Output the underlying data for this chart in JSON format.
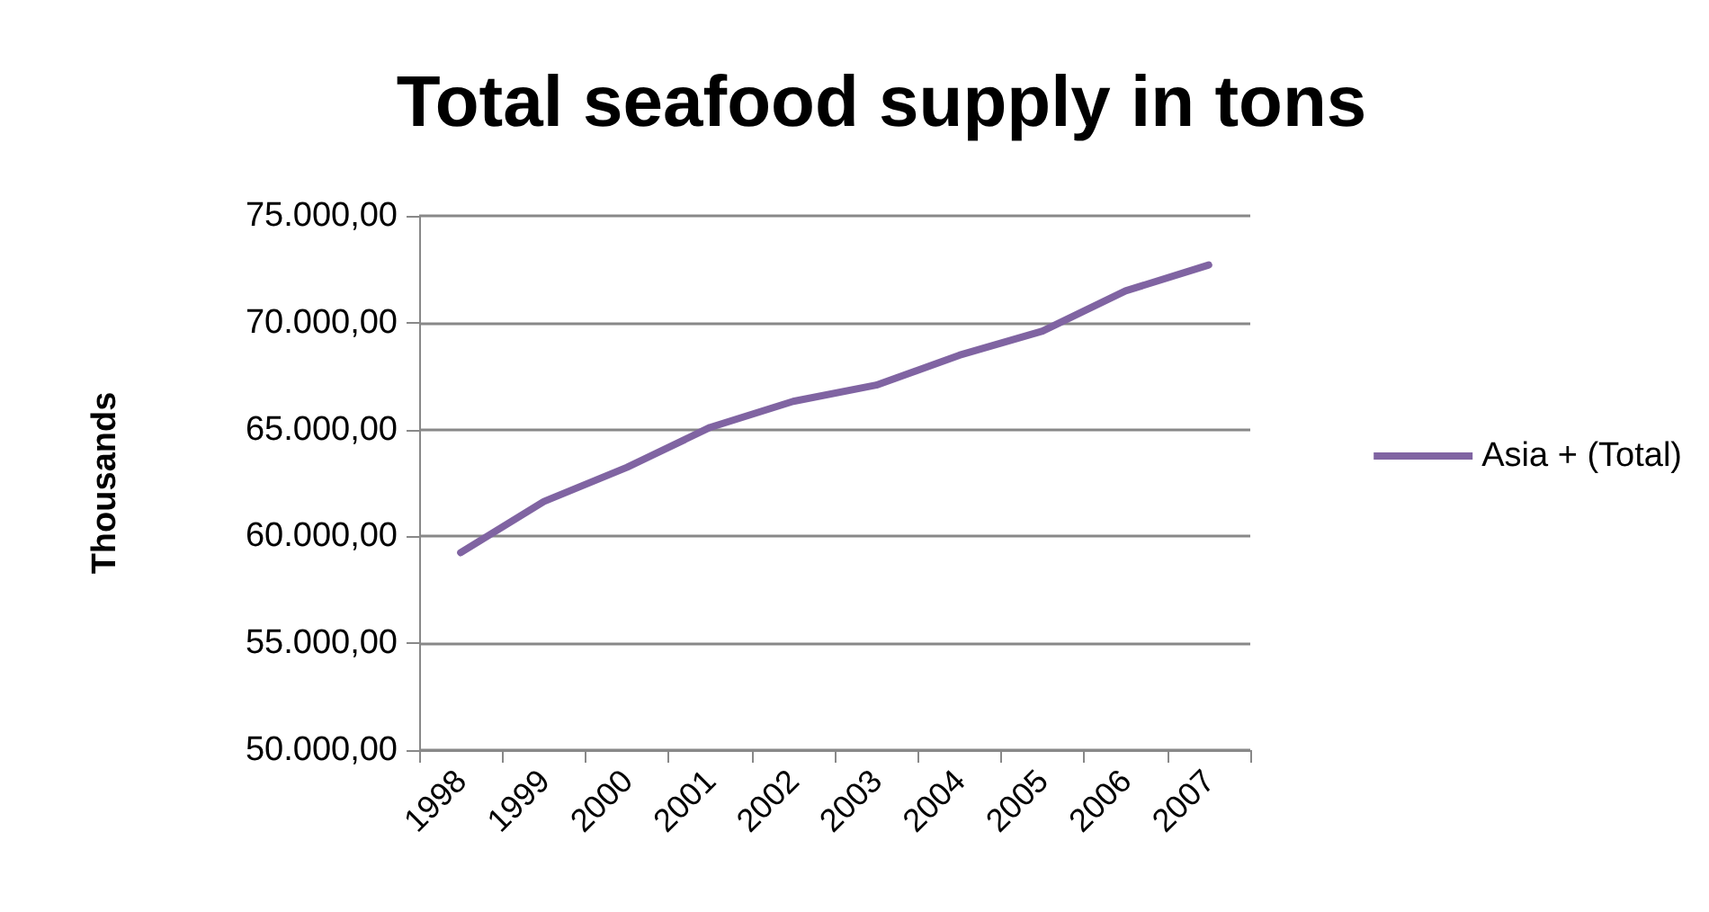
{
  "chart_data": {
    "type": "line",
    "title": "Total seafood supply in tons",
    "ylabel": "Thousands",
    "categories": [
      "1998",
      "1999",
      "2000",
      "2001",
      "2002",
      "2003",
      "2004",
      "2005",
      "2006",
      "2007"
    ],
    "series": [
      {
        "name": "Asia + (Total)",
        "color": "#8064a2",
        "values": [
          59240,
          61630,
          63230,
          65100,
          66320,
          67080,
          68480,
          69610,
          71490,
          72700
        ]
      }
    ],
    "ylim": [
      50000,
      75000
    ],
    "yticks": [
      {
        "value": 50000,
        "label": "50.000,00"
      },
      {
        "value": 55000,
        "label": "55.000,00"
      },
      {
        "value": 60000,
        "label": "60.000,00"
      },
      {
        "value": 65000,
        "label": "65.000,00"
      },
      {
        "value": 70000,
        "label": "70.000,00"
      },
      {
        "value": 75000,
        "label": "75.000,00"
      }
    ],
    "grid": "y",
    "legend": "right",
    "marker": "none",
    "line_style": "solid"
  }
}
